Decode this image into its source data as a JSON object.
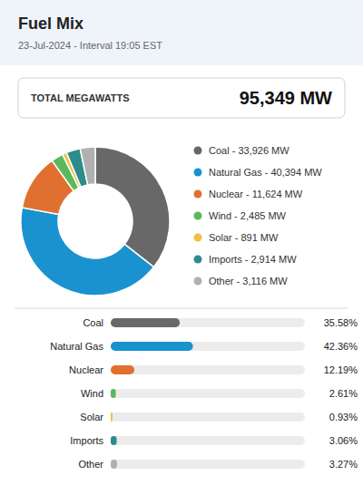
{
  "chart_data": [
    {
      "type": "pie",
      "title": "Fuel Mix",
      "subtitle": "23-Jul-2024 - Interval 19:05 EST",
      "annotations": [
        "TOTAL MEGAWATTS",
        "95,349 MW"
      ],
      "categories": [
        "Coal - 33,926 MW",
        "Natural Gas - 40,394 MW",
        "Nuclear - 11,624 MW",
        "Wind - 2,485 MW",
        "Solar - 891 MW",
        "Imports - 2,914 MW",
        "Other - 3,116 MW"
      ],
      "values": [
        33926,
        40394,
        11624,
        2485,
        891,
        2914,
        3116
      ],
      "colors": [
        "#686868",
        "#1a92d0",
        "#e07030",
        "#5cb85c",
        "#f0c040",
        "#2e8b8b",
        "#b0b0b0"
      ],
      "legend": "right"
    },
    {
      "type": "bar",
      "orientation": "horizontal",
      "categories": [
        "Coal",
        "Natural Gas",
        "Nuclear",
        "Wind",
        "Solar",
        "Imports",
        "Other"
      ],
      "values": [
        35.58,
        42.36,
        12.19,
        2.61,
        0.93,
        3.06,
        3.27
      ],
      "value_labels": [
        "35.58%",
        "42.36%",
        "12.19%",
        "2.61%",
        "0.93%",
        "3.06%",
        "3.27%"
      ],
      "colors": [
        "#686868",
        "#1a92d0",
        "#e07030",
        "#5cb85c",
        "#f0c040",
        "#2e8b8b",
        "#b0b0b0"
      ],
      "xlim": [
        0,
        100
      ],
      "data_labels": true,
      "tick_labels": "y",
      "grid": false
    }
  ]
}
